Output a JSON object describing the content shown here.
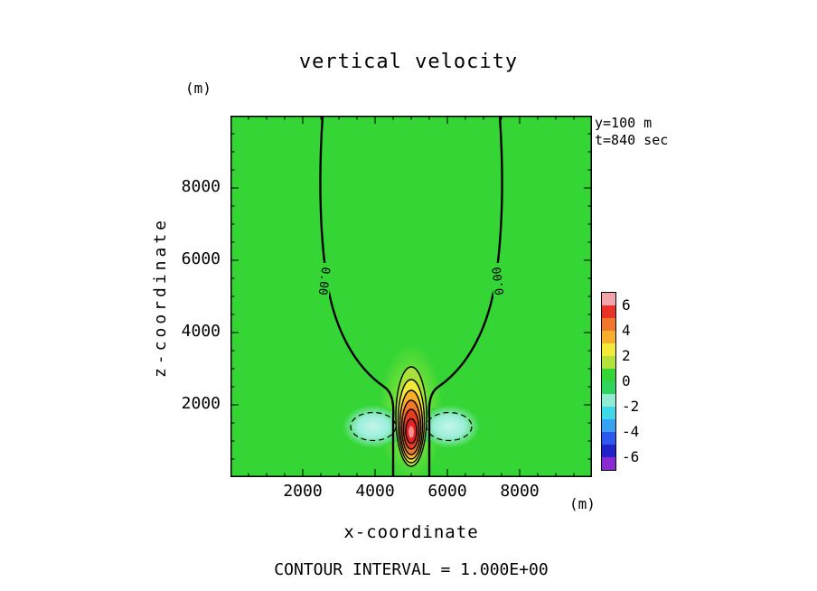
{
  "chart_data": {
    "type": "contour",
    "title": "vertical velocity",
    "xlabel": "x-coordinate",
    "ylabel": "z-coordinate",
    "x_unit": "(m)",
    "y_unit": "(m)",
    "xlim": [
      0,
      10000
    ],
    "ylim": [
      0,
      10000
    ],
    "xticks": [
      2000,
      4000,
      6000,
      8000
    ],
    "yticks": [
      2000,
      4000,
      6000,
      8000
    ],
    "minor_tick_interval": 500,
    "annotations": [
      "y=100 m",
      "t=840 sec"
    ],
    "contour_interval": 1.0,
    "contour_interval_label": "CONTOUR INTERVAL = 1.000E+00",
    "contour_labels": [
      "0.00",
      "0.00"
    ],
    "solid_contour_levels": [
      0,
      1,
      2,
      3,
      4,
      5,
      6
    ],
    "dashed_contour_levels": [
      -1
    ],
    "colorbar": {
      "ticks": [
        6,
        4,
        2,
        0,
        -2,
        -4,
        -6
      ],
      "levels": [
        7,
        6,
        5,
        4,
        3,
        2,
        1,
        0,
        -1,
        -2,
        -3,
        -4,
        -5,
        -6,
        -7
      ],
      "colors": [
        "#f2a3ac",
        "#e93223",
        "#f0762c",
        "#f5af2c",
        "#f4ea3a",
        "#b4e23a",
        "#35d535",
        "#2fd45f",
        "#8fecd2",
        "#3fd8e8",
        "#38a2f2",
        "#2c58f0",
        "#2222cc",
        "#8a2ad2"
      ]
    },
    "field_features": {
      "background_value": 0,
      "updraft": {
        "center_x": 5000,
        "center_z": 1300,
        "max_value": 7,
        "width_m": 900,
        "top_z": 3000
      },
      "downdrafts": [
        {
          "center_x": 4050,
          "center_z": 1400,
          "min_value": -2
        },
        {
          "center_x": 5950,
          "center_z": 1400,
          "min_value": -2
        }
      ],
      "zero_line": "funnel from x~2550 and x~7450 at model top converging onto updraft near z~2800"
    },
    "colors": {
      "background_green": "#35d535",
      "frame": "#000000"
    }
  }
}
